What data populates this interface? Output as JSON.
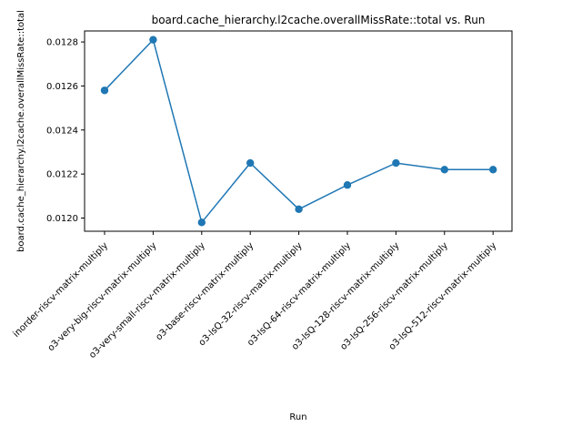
{
  "chart_data": {
    "type": "line",
    "title": "board.cache_hierarchy.l2cache.overallMissRate::total vs. Run",
    "xlabel": "Run",
    "ylabel": "board.cache_hierarchy.l2cache.overallMissRate::total",
    "categories": [
      "inorder-riscv-matrix-multiply",
      "o3-very-big-riscv-matrix-multiply",
      "o3-very-small-riscv-matrix-multiply",
      "o3-base-riscv-matrix-multiply",
      "o3-lsQ-32-riscv-matrix-multiply",
      "o3-lsQ-64-riscv-matrix-multiply",
      "o3-lsQ-128-riscv-matrix-multiply",
      "o3-lsQ-256-riscv-matrix-multiply",
      "o3-lsQ-512-riscv-matrix-multiply"
    ],
    "series": [
      {
        "values": [
          0.01258,
          0.01281,
          0.01198,
          0.01225,
          0.01204,
          0.01215,
          0.01225,
          0.01222,
          0.01222
        ]
      }
    ],
    "ylim": [
      0.01194,
      0.01285
    ],
    "yticks": [
      "0.0120",
      "0.0122",
      "0.0124",
      "0.0126",
      "0.0128"
    ],
    "ytick_values": [
      0.012,
      0.0122,
      0.0124,
      0.0126,
      0.0128
    ],
    "grid": false,
    "line_color": "#1f77b4"
  }
}
